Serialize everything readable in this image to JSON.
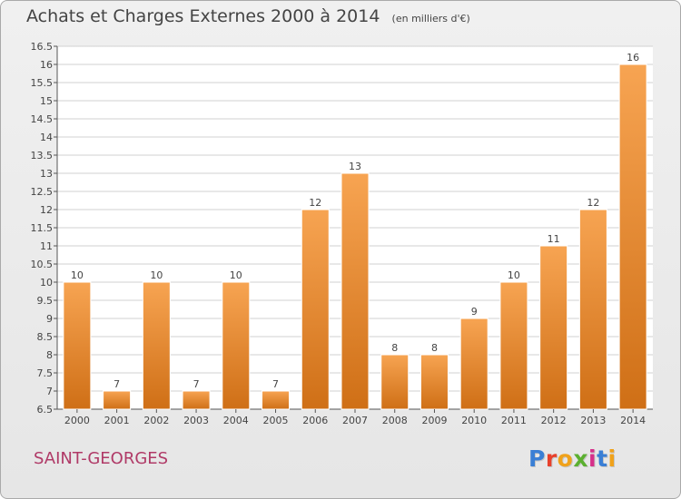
{
  "header": {
    "title": "Achats et Charges Externes 2000 à 2014",
    "subtitle": "(en milliers d'€)"
  },
  "footer": {
    "city": "SAINT-GEORGES",
    "logo": "Proxiti"
  },
  "colors": {
    "bar_light": "#f7a452",
    "bar_dark": "#cf6f16",
    "city": "#b03a67",
    "logo": [
      "#3a7fd5",
      "#e8412c",
      "#f0a21b",
      "#5bb030",
      "#d6308a",
      "#3a7fd5",
      "#f0a21b"
    ]
  },
  "chart_data": {
    "type": "bar",
    "title": "Achats et Charges Externes 2000 à 2014",
    "subtitle": "(en milliers d'€)",
    "xlabel": "",
    "ylabel": "",
    "categories": [
      "2000",
      "2001",
      "2002",
      "2003",
      "2004",
      "2005",
      "2006",
      "2007",
      "2008",
      "2009",
      "2010",
      "2011",
      "2012",
      "2013",
      "2014"
    ],
    "values": [
      10,
      7,
      10,
      7,
      10,
      7,
      12,
      13,
      8,
      8,
      9,
      10,
      11,
      12,
      16
    ],
    "data_labels": [
      "10",
      "7",
      "10",
      "7",
      "10",
      "7",
      "12",
      "13",
      "8",
      "8",
      "9",
      "10",
      "11",
      "12",
      "16"
    ],
    "ylim": [
      6.5,
      16.5
    ],
    "yticks": [
      6.5,
      7,
      7.5,
      8,
      8.5,
      9,
      9.5,
      10,
      10.5,
      11,
      11.5,
      12,
      12.5,
      13,
      13.5,
      14,
      14.5,
      15,
      15.5,
      16,
      16.5
    ],
    "ytick_labels": [
      "6.5",
      "7",
      "7.5",
      "8",
      "8.5",
      "9",
      "9.5",
      "10",
      "10.5",
      "11",
      "11.5",
      "12",
      "12.5",
      "13",
      "13.5",
      "14",
      "14.5",
      "15",
      "15.5",
      "16",
      "16.5"
    ],
    "grid": true,
    "legend": "none"
  }
}
